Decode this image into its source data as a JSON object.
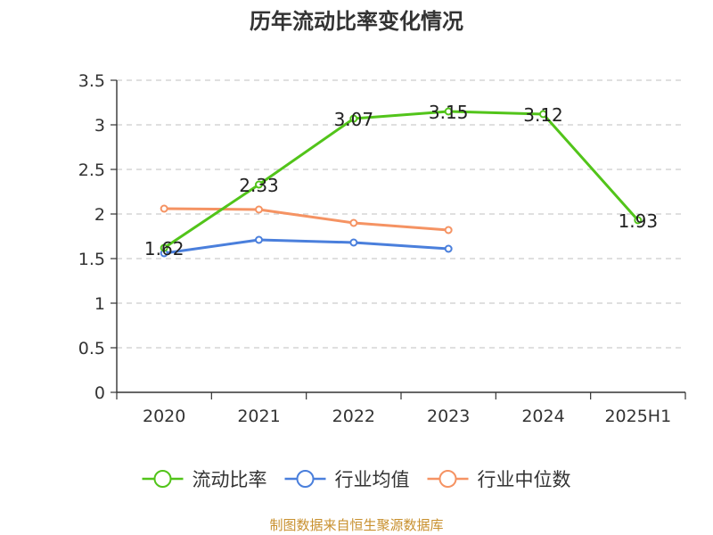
{
  "chart_data": {
    "type": "line",
    "title": "历年流动比率变化情况",
    "categories": [
      "2020",
      "2021",
      "2022",
      "2023",
      "2024",
      "2025H1"
    ],
    "y_ticks": [
      "0",
      "0.5",
      "1",
      "1.5",
      "2",
      "2.5",
      "3",
      "3.5"
    ],
    "ylim": [
      0,
      3.5
    ],
    "grid": true,
    "legend_position": "bottom",
    "series": [
      {
        "name": "流动比率",
        "color": "#52c41a",
        "values": [
          1.62,
          2.33,
          3.07,
          3.15,
          3.12,
          1.93
        ],
        "labels": [
          "1.62",
          "2.33",
          "3.07",
          "3.15",
          "3.12",
          "1.93"
        ]
      },
      {
        "name": "行业均值",
        "color": "#4a7fdc",
        "values": [
          1.56,
          1.71,
          1.68,
          1.61,
          null,
          null
        ]
      },
      {
        "name": "行业中位数",
        "color": "#f59363",
        "values": [
          2.06,
          2.05,
          1.9,
          1.82,
          null,
          null
        ]
      }
    ]
  },
  "source": "制图数据来自恒生聚源数据库"
}
